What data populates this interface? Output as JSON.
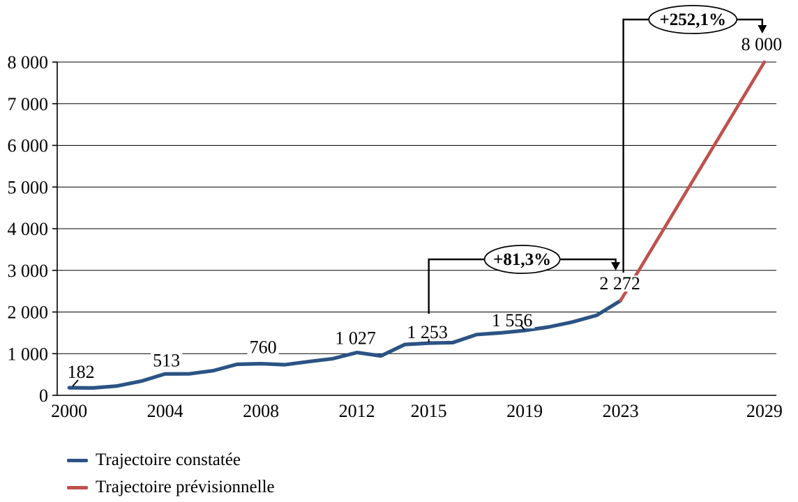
{
  "chart_data": {
    "type": "line",
    "title": "",
    "xlabel": "",
    "ylabel": "",
    "ylim": [
      0,
      8000
    ],
    "ytick_step": 1000,
    "grid": true,
    "legend_position": "bottom-left",
    "ytick_labels": [
      "0",
      "1 000",
      "2 000",
      "3 000",
      "4 000",
      "5 000",
      "6 000",
      "7 000",
      "8 000"
    ],
    "xtick_labels": [
      "2000",
      "2004",
      "2008",
      "2012",
      "2015",
      "2019",
      "2023",
      "2029"
    ],
    "series": [
      {
        "name": "Trajectoire constatée",
        "color": "#2B5384",
        "x": [
          2000,
          2001,
          2002,
          2003,
          2004,
          2005,
          2006,
          2007,
          2008,
          2009,
          2010,
          2011,
          2012,
          2013,
          2014,
          2015,
          2016,
          2017,
          2018,
          2019,
          2020,
          2021,
          2022,
          2023
        ],
        "values": [
          182,
          178,
          225,
          340,
          513,
          515,
          590,
          745,
          760,
          735,
          810,
          880,
          1027,
          945,
          1220,
          1253,
          1265,
          1460,
          1500,
          1556,
          1640,
          1760,
          1920,
          2272
        ]
      },
      {
        "name": "Trajectoire prévisionnelle",
        "color": "#C0504D",
        "x": [
          2023,
          2024,
          2025,
          2026,
          2027,
          2028,
          2029
        ],
        "values": [
          2272,
          3227,
          4181,
          5136,
          6090,
          7045,
          8000
        ]
      }
    ],
    "point_labels": [
      {
        "series": 0,
        "year": 2000,
        "text": "182"
      },
      {
        "series": 0,
        "year": 2004,
        "text": "513"
      },
      {
        "series": 0,
        "year": 2008,
        "text": "760"
      },
      {
        "series": 0,
        "year": 2012,
        "text": "1 027"
      },
      {
        "series": 0,
        "year": 2015,
        "text": "1 253"
      },
      {
        "series": 0,
        "year": 2019,
        "text": "1 556"
      },
      {
        "series": 0,
        "year": 2023,
        "text": "2 272"
      },
      {
        "series": 1,
        "year": 2029,
        "text": "8 000"
      }
    ],
    "annotations": [
      {
        "text": "+81,3%",
        "from_year": 2015,
        "to_year": 2023
      },
      {
        "text": "+252,1%",
        "from_year": 2023,
        "to_year": 2029
      }
    ]
  },
  "legend": {
    "items": [
      {
        "label": "Trajectoire constatée",
        "color": "#2B5384"
      },
      {
        "label": "Trajectoire prévisionnelle",
        "color": "#C0504D"
      }
    ]
  }
}
